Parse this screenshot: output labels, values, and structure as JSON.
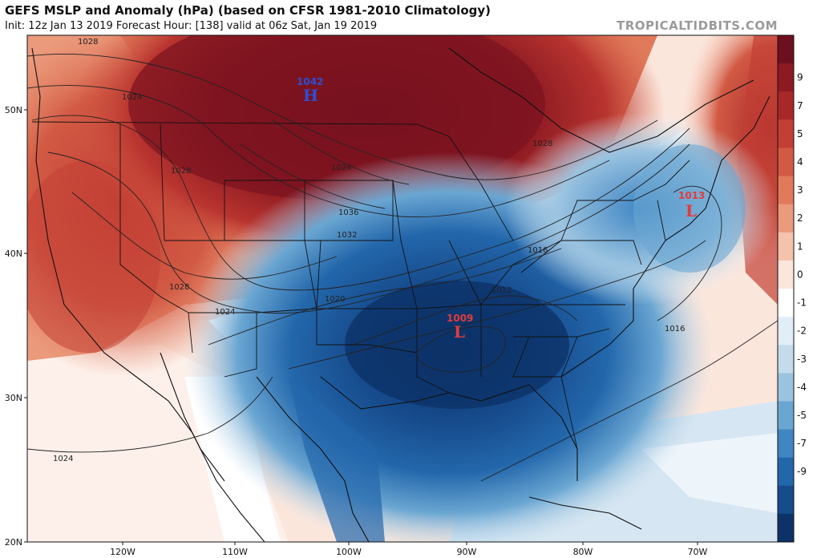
{
  "header": {
    "title": "GEFS MSLP and Anomaly (hPa) (based on CFSR 1981-2010 Climatology)",
    "subtitle": "Init: 12z Jan 13 2019   Forecast Hour: [138]   valid at 06z Sat, Jan 19 2019",
    "brand": "TROPICALTIDBITS.COM"
  },
  "axes": {
    "lat_labels": [
      "50N",
      "40N",
      "30N",
      "20N"
    ],
    "lon_labels": [
      "120W",
      "110W",
      "100W",
      "90W",
      "80W",
      "70W"
    ]
  },
  "colorbar": {
    "labels": [
      "9",
      "7",
      "5",
      "4",
      "3",
      "2",
      "1",
      "0",
      "-1",
      "-2",
      "-3",
      "-4",
      "-5",
      "-7",
      "-9"
    ],
    "colors": [
      "#6e0f1f",
      "#8c1a22",
      "#a8282a",
      "#c23f35",
      "#d25a44",
      "#e07a5b",
      "#eb9a7c",
      "#f5c2ac",
      "#fbe6dc",
      "#ffffff",
      "#e2eef6",
      "#c3dbeb",
      "#9ac3e0",
      "#6aa6d2",
      "#3f86c3",
      "#2367ab",
      "#164b8c",
      "#0c3268"
    ]
  },
  "centers": [
    {
      "type": "H",
      "value": "1042",
      "color": "#2b4fd6"
    },
    {
      "type": "L",
      "value": "1009",
      "color": "#e23b3b"
    },
    {
      "type": "L",
      "value": "1013",
      "color": "#e23b3b"
    }
  ],
  "isobar_labels": [
    "1028",
    "1024",
    "1028",
    "1028",
    "1024",
    "1024",
    "1036",
    "1032",
    "1028",
    "1020",
    "1016",
    "1012",
    "1016",
    "1024"
  ]
}
